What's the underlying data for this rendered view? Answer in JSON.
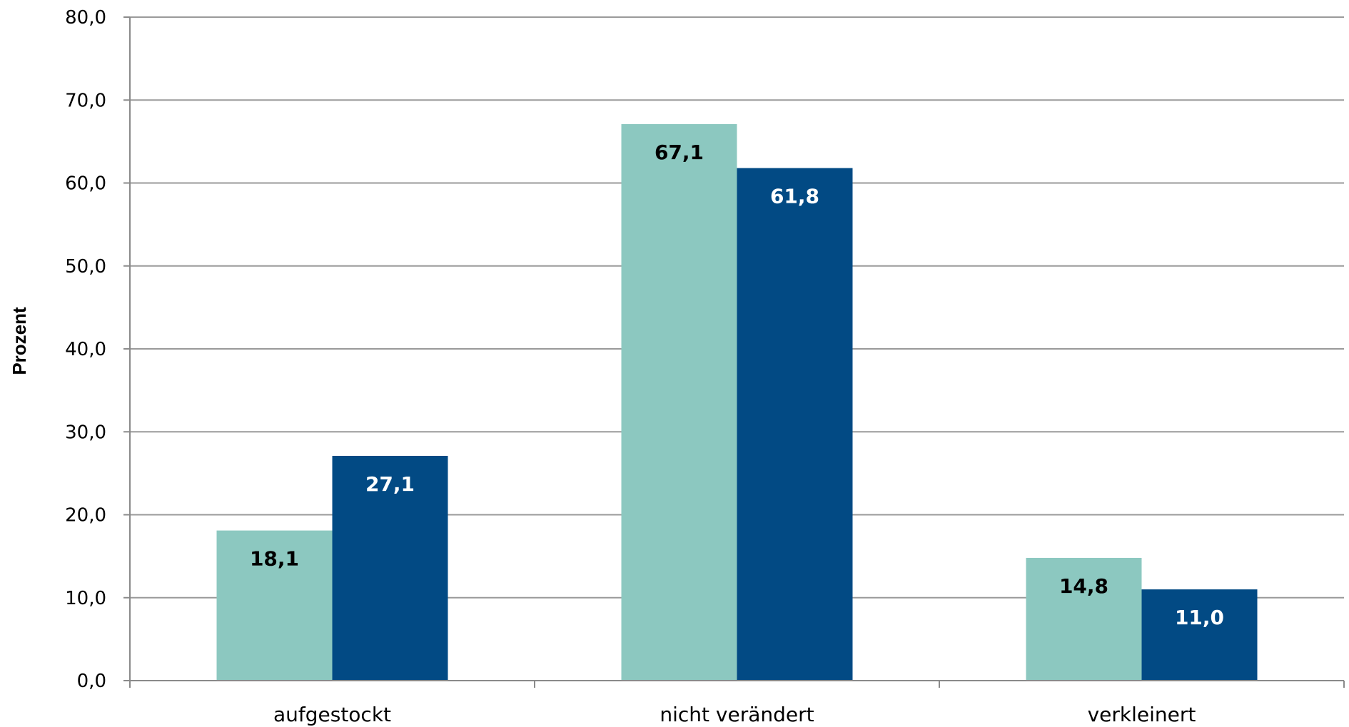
{
  "chart_data": {
    "type": "bar",
    "title": "",
    "xlabel": "",
    "ylabel": "Prozent",
    "ylim": [
      0,
      80
    ],
    "yticks": [
      "0,0",
      "10,0",
      "20,0",
      "30,0",
      "40,0",
      "50,0",
      "60,0",
      "70,0",
      "80,0"
    ],
    "grid": true,
    "legend": "none",
    "categories": [
      "aufgestockt",
      "nicht verändert",
      "verkleinert"
    ],
    "series": [
      {
        "color": "#8cc8c0",
        "label_color": "#000000",
        "values": [
          18.1,
          67.1,
          14.8
        ],
        "labels": [
          "18,1",
          "67,1",
          "14,8"
        ]
      },
      {
        "color": "#024a84",
        "label_color": "#ffffff",
        "values": [
          27.1,
          61.8,
          11.0
        ],
        "labels": [
          "27,1",
          "61,8",
          "11,0"
        ]
      }
    ],
    "colors": {
      "grid": "#9a9a9a",
      "axis": "#8a8a8a"
    }
  }
}
